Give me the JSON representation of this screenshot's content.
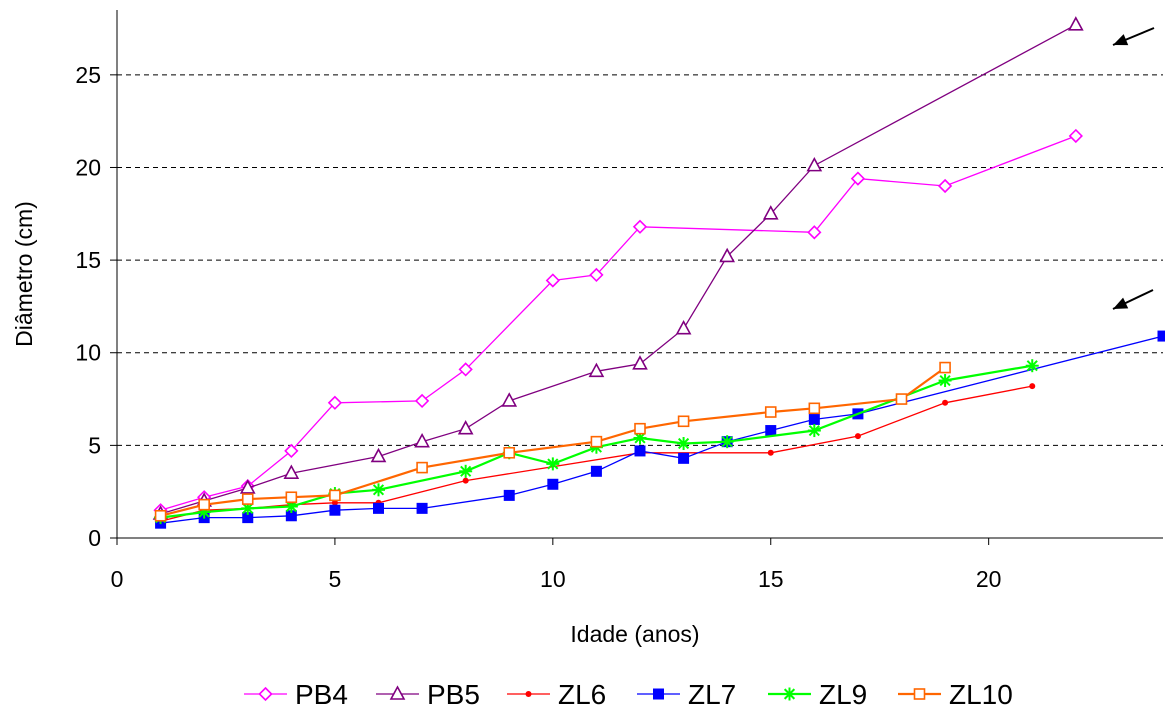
{
  "chart_data": {
    "type": "line",
    "title": "",
    "xlabel": "Idade (anos)",
    "ylabel": "Diâmetro (cm)",
    "xlim": [
      0,
      24
    ],
    "ylim": [
      0,
      28.5
    ],
    "xticks": [
      0,
      5,
      10,
      15,
      20
    ],
    "yticks": [
      0,
      5,
      10,
      15,
      20,
      25
    ],
    "grid": "horizontal-dashed",
    "legend_position": "bottom",
    "series": [
      {
        "name": "PB4",
        "color": "#ff00ff",
        "marker": "diamond-open",
        "points": [
          [
            1,
            1.5
          ],
          [
            2,
            2.2
          ],
          [
            3,
            2.8
          ],
          [
            4,
            4.7
          ],
          [
            5,
            7.3
          ],
          [
            7,
            7.4
          ],
          [
            8,
            9.1
          ],
          [
            10,
            13.9
          ],
          [
            11,
            14.2
          ],
          [
            12,
            16.8
          ],
          [
            16,
            16.5
          ],
          [
            17,
            19.4
          ],
          [
            19,
            19.0
          ],
          [
            22,
            21.7
          ]
        ]
      },
      {
        "name": "PB5",
        "color": "#800080",
        "marker": "triangle-open",
        "points": [
          [
            1,
            1.3
          ],
          [
            2,
            2.0
          ],
          [
            3,
            2.7
          ],
          [
            4,
            3.5
          ],
          [
            6,
            4.4
          ],
          [
            7,
            5.2
          ],
          [
            8,
            5.9
          ],
          [
            9,
            7.4
          ],
          [
            11,
            9.0
          ],
          [
            12,
            9.4
          ],
          [
            13,
            11.3
          ],
          [
            14,
            15.2
          ],
          [
            15,
            17.5
          ],
          [
            16,
            20.1
          ],
          [
            22,
            27.7
          ]
        ]
      },
      {
        "name": "ZL6",
        "color": "#ff0000",
        "marker": "dot",
        "points": [
          [
            1,
            0.9
          ],
          [
            2,
            1.5
          ],
          [
            3,
            1.6
          ],
          [
            4,
            1.8
          ],
          [
            5,
            1.9
          ],
          [
            6,
            1.9
          ],
          [
            8,
            3.1
          ],
          [
            12,
            4.6
          ],
          [
            15,
            4.6
          ],
          [
            17,
            5.5
          ],
          [
            19,
            7.3
          ],
          [
            21,
            8.2
          ]
        ]
      },
      {
        "name": "ZL7",
        "color": "#0000ff",
        "marker": "square-filled",
        "points": [
          [
            1,
            0.8
          ],
          [
            2,
            1.1
          ],
          [
            3,
            1.1
          ],
          [
            4,
            1.2
          ],
          [
            5,
            1.5
          ],
          [
            6,
            1.6
          ],
          [
            7,
            1.6
          ],
          [
            9,
            2.3
          ],
          [
            10,
            2.9
          ],
          [
            11,
            3.6
          ],
          [
            12,
            4.7
          ],
          [
            13,
            4.3
          ],
          [
            14,
            5.2
          ],
          [
            15,
            5.8
          ],
          [
            16,
            6.4
          ],
          [
            17,
            6.7
          ],
          [
            24,
            10.9
          ]
        ]
      },
      {
        "name": "ZL9",
        "color": "#00ff00",
        "marker": "asterisk",
        "points": [
          [
            1,
            1.1
          ],
          [
            2,
            1.4
          ],
          [
            3,
            1.6
          ],
          [
            4,
            1.7
          ],
          [
            5,
            2.4
          ],
          [
            6,
            2.6
          ],
          [
            8,
            3.6
          ],
          [
            9,
            4.6
          ],
          [
            10,
            4.0
          ],
          [
            11,
            4.9
          ],
          [
            12,
            5.4
          ],
          [
            13,
            5.1
          ],
          [
            14,
            5.2
          ],
          [
            16,
            5.8
          ],
          [
            19,
            8.5
          ],
          [
            21,
            9.3
          ]
        ]
      },
      {
        "name": "ZL10",
        "color": "#ff6600",
        "marker": "square-open",
        "points": [
          [
            1,
            1.2
          ],
          [
            2,
            1.8
          ],
          [
            3,
            2.1
          ],
          [
            4,
            2.2
          ],
          [
            5,
            2.3
          ],
          [
            7,
            3.8
          ],
          [
            9,
            4.6
          ],
          [
            11,
            5.2
          ],
          [
            12,
            5.9
          ],
          [
            13,
            6.3
          ],
          [
            15,
            6.8
          ],
          [
            16,
            7.0
          ],
          [
            18,
            7.5
          ],
          [
            19,
            9.2
          ]
        ]
      }
    ]
  }
}
